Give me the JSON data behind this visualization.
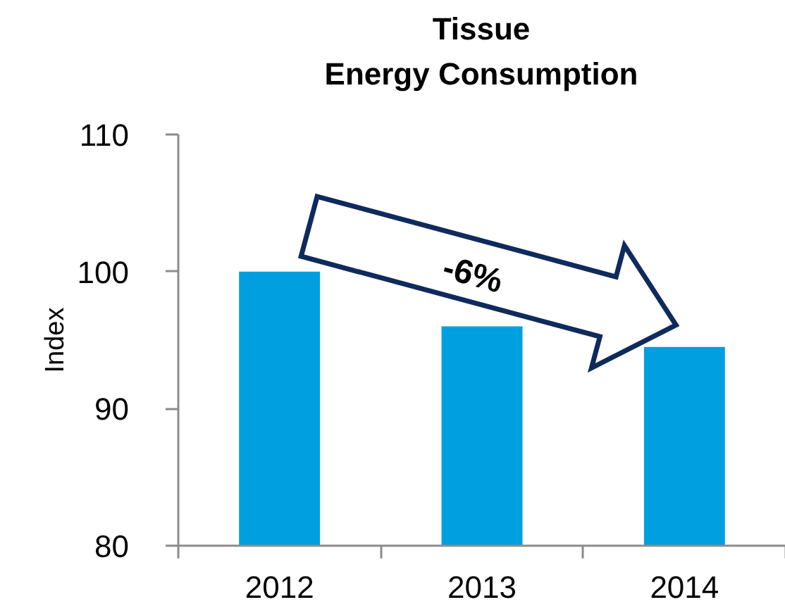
{
  "chart_data": {
    "type": "bar",
    "title": "Tissue\nEnergy Consumption",
    "ylabel": "Index",
    "categories": [
      "2012",
      "2013",
      "2014"
    ],
    "values": [
      100,
      96,
      94.5
    ],
    "color": "#009fe0",
    "ylim": [
      80,
      110
    ],
    "yticks": [
      80,
      90,
      100,
      110
    ],
    "annotations": [
      "-6%"
    ]
  }
}
